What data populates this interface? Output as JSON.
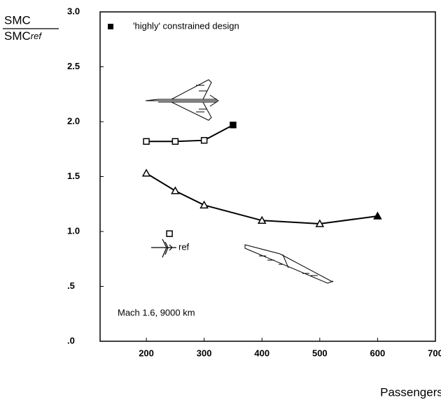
{
  "chart_data": {
    "type": "line",
    "ylabel_top": "SMC",
    "ylabel_bottom": "SMC",
    "ylabel_sub": "ref",
    "xlabel": "Passengers",
    "legend_label": "'highly' constrained design",
    "annotation": "Mach 1.6,  9000 km",
    "ref_label": "ref",
    "xlim": [
      120,
      700
    ],
    "xticks": [
      200,
      300,
      400,
      500,
      600,
      700
    ],
    "ylim": [
      0,
      3
    ],
    "yticks": [
      {
        "value": 0,
        "label": ".0"
      },
      {
        "value": 0.5,
        "label": ".5"
      },
      {
        "value": 1,
        "label": "1.0"
      },
      {
        "value": 1.5,
        "label": "1.5"
      },
      {
        "value": 2,
        "label": "2.0"
      },
      {
        "value": 2.5,
        "label": "2.5"
      },
      {
        "value": 3,
        "label": "3.0"
      }
    ],
    "color": "#000000",
    "series": [
      {
        "marker": "triangle",
        "x": [
          200,
          250,
          300,
          400,
          500,
          600
        ],
        "values": [
          1.53,
          1.37,
          1.24,
          1.1,
          1.07,
          1.14
        ],
        "filled": [
          false,
          false,
          false,
          false,
          false,
          true
        ],
        "connected": true
      },
      {
        "marker": "square",
        "x": [
          200,
          250,
          300,
          350
        ],
        "values": [
          1.82,
          1.82,
          1.83,
          1.97
        ],
        "filled": [
          false,
          false,
          false,
          true
        ],
        "connected": true
      },
      {
        "marker": "square",
        "x": [
          240
        ],
        "values": [
          0.98
        ],
        "filled": [
          false
        ],
        "connected": false
      }
    ]
  }
}
